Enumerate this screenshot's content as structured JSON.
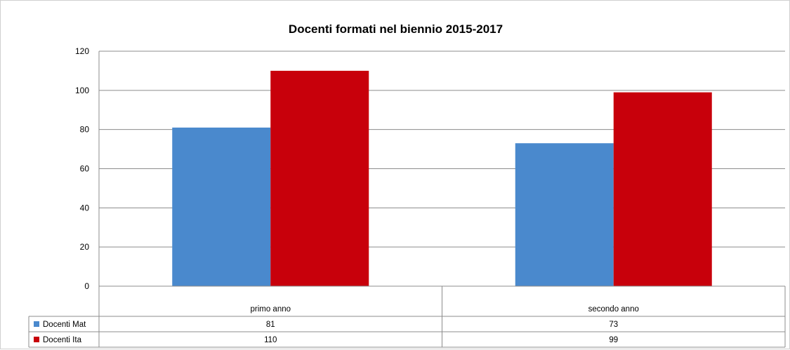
{
  "chart_data": {
    "type": "bar",
    "title": "Docenti formati nel biennio 2015-2017",
    "xlabel": "",
    "ylabel": "",
    "categories": [
      "primo anno",
      "secondo anno"
    ],
    "series": [
      {
        "name": "Docenti Mat",
        "values": [
          81,
          73
        ],
        "color": "#4a89cd"
      },
      {
        "name": "Docenti Ita",
        "values": [
          110,
          99
        ],
        "color": "#c8000b"
      }
    ],
    "ylim": [
      0,
      120
    ],
    "yticks": [
      "0",
      "20",
      "40",
      "60",
      "80",
      "100",
      "120"
    ],
    "grid": true,
    "legend": "data-table-bottom"
  }
}
